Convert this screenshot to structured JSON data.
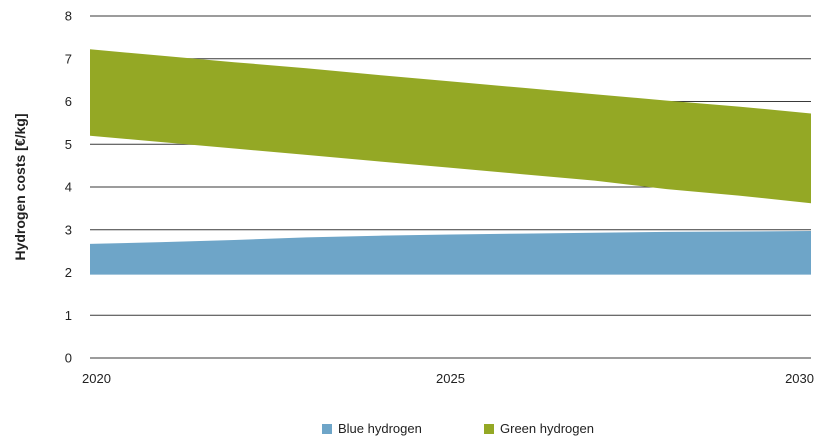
{
  "chart_data": {
    "type": "area",
    "title": "",
    "xlabel": "",
    "ylabel": "Hydrogen costs [€/kg]",
    "x": [
      2020,
      2021,
      2022,
      2023,
      2024,
      2025,
      2026,
      2027,
      2028,
      2029,
      2030
    ],
    "x_ticks": [
      "2020",
      "2025",
      "2030"
    ],
    "y_ticks": [
      "0",
      "1",
      "2",
      "3",
      "4",
      "5",
      "6",
      "7",
      "8"
    ],
    "xlim": [
      2020,
      2030
    ],
    "ylim": [
      0,
      8
    ],
    "grid": "horizontal",
    "legend_position": "bottom-center",
    "series": [
      {
        "name": "Blue hydrogen",
        "color": "#6ea5c8",
        "lower": [
          1.95,
          1.95,
          1.95,
          1.95,
          1.95,
          1.95,
          1.95,
          1.95,
          1.95,
          1.95,
          1.95
        ],
        "upper": [
          2.67,
          2.71,
          2.76,
          2.82,
          2.86,
          2.89,
          2.91,
          2.93,
          2.95,
          2.96,
          2.97
        ]
      },
      {
        "name": "Green hydrogen",
        "color": "#94a825",
        "lower": [
          5.2,
          5.05,
          4.9,
          4.75,
          4.6,
          4.45,
          4.3,
          4.15,
          3.95,
          3.8,
          3.62
        ],
        "upper": [
          7.22,
          7.07,
          6.92,
          6.78,
          6.62,
          6.47,
          6.32,
          6.17,
          6.02,
          5.88,
          5.72
        ]
      }
    ]
  }
}
